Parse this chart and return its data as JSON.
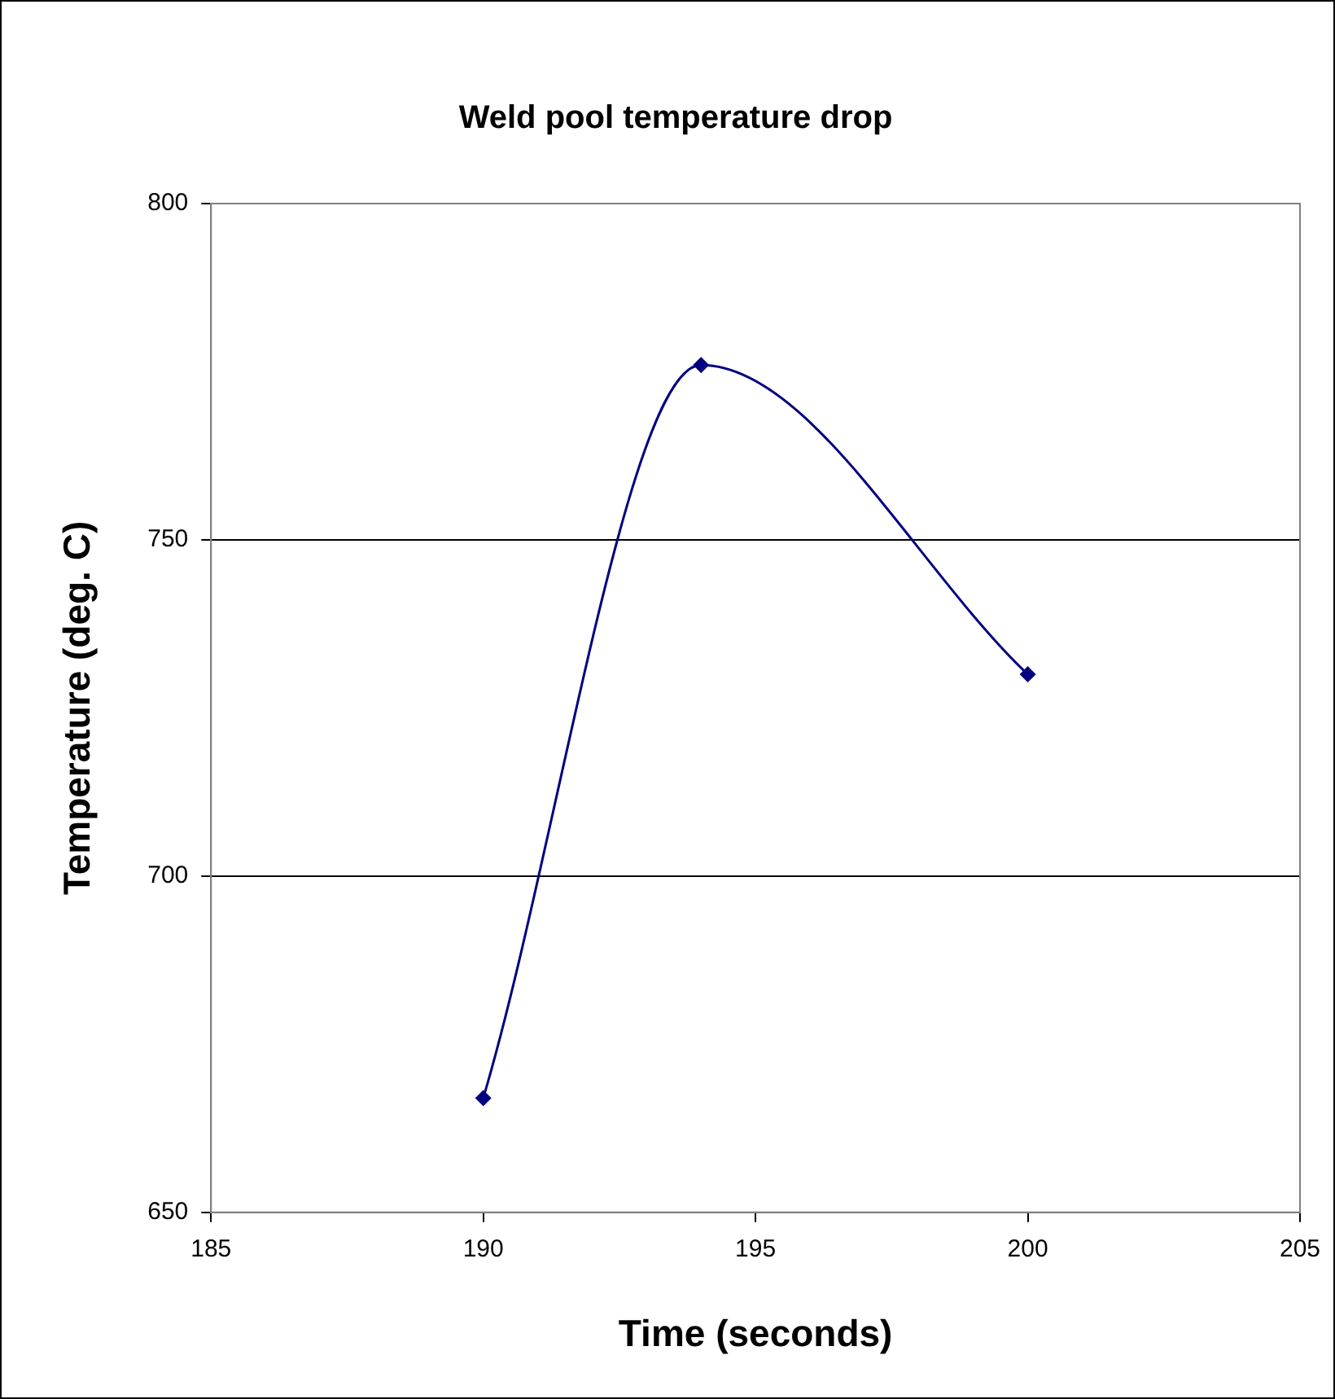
{
  "chart_data": {
    "type": "line",
    "title": "Weld pool temperature drop",
    "xlabel": "Time (seconds)",
    "ylabel": "Temperature (deg. C)",
    "x": [
      190,
      194,
      200
    ],
    "values": [
      667,
      776,
      730
    ],
    "color": "#000080",
    "xlim": [
      185,
      205
    ],
    "xticks": [
      185,
      190,
      195,
      200,
      205
    ],
    "ylim": [
      650,
      800
    ],
    "yticks": [
      650,
      700,
      750,
      800
    ],
    "grid": "y",
    "marker": "diamond"
  }
}
